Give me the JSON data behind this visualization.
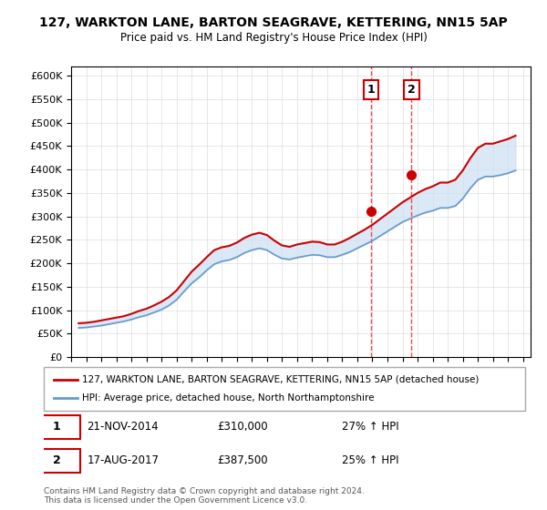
{
  "title": "127, WARKTON LANE, BARTON SEAGRAVE, KETTERING, NN15 5AP",
  "subtitle": "Price paid vs. HM Land Registry's House Price Index (HPI)",
  "ylabel_format": "£{0}K",
  "yticks": [
    0,
    50000,
    100000,
    150000,
    200000,
    250000,
    300000,
    350000,
    400000,
    450000,
    500000,
    550000,
    600000
  ],
  "xlim_start": 1995.0,
  "xlim_end": 2025.5,
  "ylim": [
    0,
    620000
  ],
  "sale1_date": "21-NOV-2014",
  "sale1_price": 310000,
  "sale1_hpi_pct": "27% ↑ HPI",
  "sale1_x": 2014.9,
  "sale2_date": "17-AUG-2017",
  "sale2_price": 387500,
  "sale2_hpi_pct": "25% ↑ HPI",
  "sale2_x": 2017.6,
  "red_line_color": "#cc0000",
  "blue_line_color": "#6699cc",
  "shade_color": "#cce0f5",
  "marker_color": "#cc0000",
  "vline_color": "#ff4444",
  "legend1_label": "127, WARKTON LANE, BARTON SEAGRAVE, KETTERING, NN15 5AP (detached house)",
  "legend2_label": "HPI: Average price, detached house, North Northamptonshire",
  "footnote": "Contains HM Land Registry data © Crown copyright and database right 2024.\nThis data is licensed under the Open Government Licence v3.0.",
  "hpi_data": {
    "years": [
      1995.5,
      1996.0,
      1996.5,
      1997.0,
      1997.5,
      1998.0,
      1998.5,
      1999.0,
      1999.5,
      2000.0,
      2000.5,
      2001.0,
      2001.5,
      2002.0,
      2002.5,
      2003.0,
      2003.5,
      2004.0,
      2004.5,
      2005.0,
      2005.5,
      2006.0,
      2006.5,
      2007.0,
      2007.5,
      2008.0,
      2008.5,
      2009.0,
      2009.5,
      2010.0,
      2010.5,
      2011.0,
      2011.5,
      2012.0,
      2012.5,
      2013.0,
      2013.5,
      2014.0,
      2014.5,
      2015.0,
      2015.5,
      2016.0,
      2016.5,
      2017.0,
      2017.5,
      2018.0,
      2018.5,
      2019.0,
      2019.5,
      2020.0,
      2020.5,
      2021.0,
      2021.5,
      2022.0,
      2022.5,
      2023.0,
      2023.5,
      2024.0,
      2024.5
    ],
    "hpi_values": [
      62000,
      63000,
      65000,
      67000,
      70000,
      73000,
      76000,
      80000,
      85000,
      89000,
      95000,
      101000,
      110000,
      122000,
      140000,
      157000,
      170000,
      185000,
      198000,
      204000,
      207000,
      213000,
      222000,
      228000,
      232000,
      228000,
      218000,
      210000,
      208000,
      212000,
      215000,
      218000,
      217000,
      213000,
      213000,
      218000,
      224000,
      232000,
      240000,
      248000,
      258000,
      268000,
      278000,
      288000,
      295000,
      302000,
      308000,
      312000,
      318000,
      318000,
      322000,
      338000,
      360000,
      378000,
      385000,
      385000,
      388000,
      392000,
      398000
    ],
    "red_values": [
      72000,
      73000,
      75000,
      78000,
      81000,
      84000,
      87000,
      92000,
      98000,
      103000,
      110000,
      118000,
      128000,
      142000,
      162000,
      182000,
      197000,
      213000,
      228000,
      234000,
      237000,
      244000,
      254000,
      261000,
      265000,
      260000,
      248000,
      238000,
      235000,
      240000,
      243000,
      246000,
      245000,
      240000,
      240000,
      246000,
      254000,
      263000,
      272000,
      282000,
      294000,
      306000,
      318000,
      330000,
      340000,
      350000,
      358000,
      364000,
      372000,
      372000,
      378000,
      398000,
      424000,
      446000,
      455000,
      455000,
      460000,
      465000,
      472000
    ]
  }
}
